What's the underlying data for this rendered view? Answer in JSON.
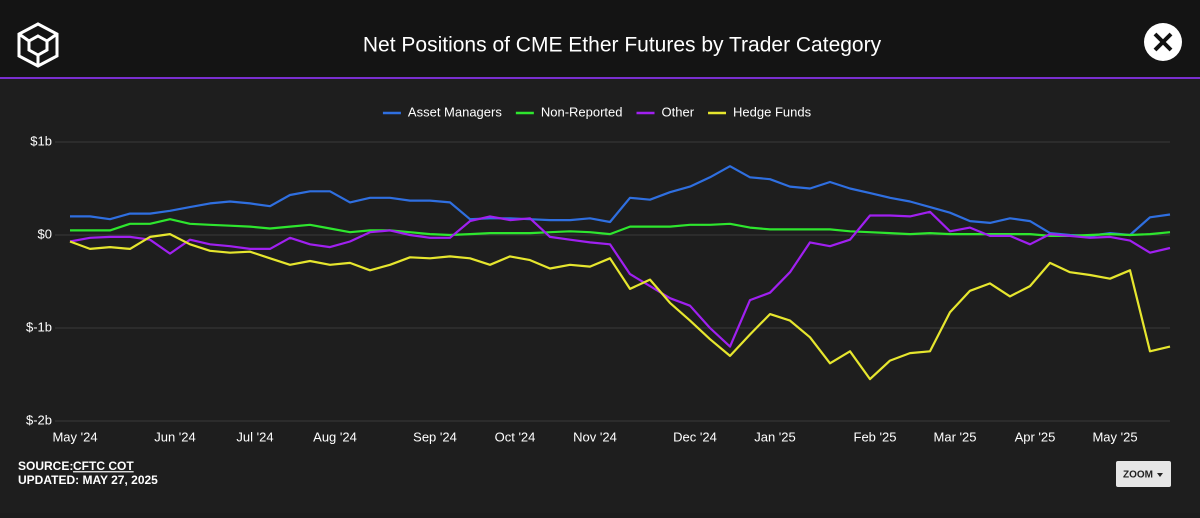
{
  "header": {
    "title": "Net Positions of CME Ether Futures by Trader Category"
  },
  "chart_data": {
    "type": "line",
    "categories": [
      "May '24",
      null,
      null,
      null,
      null,
      "Jun '24",
      null,
      null,
      null,
      "Jul '24",
      null,
      null,
      null,
      "Aug '24",
      null,
      null,
      null,
      null,
      "Sep '24",
      null,
      null,
      null,
      "Oct '24",
      null,
      null,
      null,
      "Nov '24",
      null,
      null,
      null,
      null,
      "Dec '24",
      null,
      null,
      null,
      "Jan '25",
      null,
      null,
      null,
      null,
      "Feb '25",
      null,
      null,
      null,
      "Mar '25",
      null,
      null,
      null,
      "Apr '25",
      null,
      null,
      null,
      "May '25",
      null,
      null,
      null
    ],
    "series": [
      {
        "name": "Asset Managers",
        "color": "#2f6fe0",
        "values": [
          0.2,
          0.2,
          0.17,
          0.23,
          0.23,
          0.26,
          0.3,
          0.34,
          0.36,
          0.34,
          0.31,
          0.43,
          0.47,
          0.47,
          0.35,
          0.4,
          0.4,
          0.37,
          0.37,
          0.35,
          0.17,
          0.18,
          0.18,
          0.17,
          0.16,
          0.16,
          0.18,
          0.14,
          0.4,
          0.38,
          0.46,
          0.52,
          0.62,
          0.74,
          0.62,
          0.6,
          0.52,
          0.5,
          0.57,
          0.5,
          0.45,
          0.4,
          0.36,
          0.3,
          0.24,
          0.15,
          0.13,
          0.18,
          0.15,
          0.02,
          0.0,
          -0.01,
          0.02,
          0.0,
          0.19,
          0.22
        ]
      },
      {
        "name": "Non-Reported",
        "color": "#2ee62e",
        "values": [
          0.05,
          0.05,
          0.05,
          0.12,
          0.12,
          0.17,
          0.12,
          0.11,
          0.1,
          0.09,
          0.07,
          0.09,
          0.11,
          0.07,
          0.03,
          0.05,
          0.05,
          0.03,
          0.01,
          0.0,
          0.01,
          0.02,
          0.02,
          0.02,
          0.03,
          0.04,
          0.03,
          0.01,
          0.09,
          0.09,
          0.09,
          0.11,
          0.11,
          0.12,
          0.08,
          0.06,
          0.06,
          0.06,
          0.06,
          0.04,
          0.03,
          0.02,
          0.01,
          0.02,
          0.01,
          0.01,
          0.01,
          0.01,
          0.01,
          -0.01,
          -0.01,
          0.0,
          0.01,
          0.0,
          0.01,
          0.03
        ]
      },
      {
        "name": "Other",
        "color": "#a020f0",
        "values": [
          -0.07,
          -0.03,
          -0.02,
          -0.02,
          -0.05,
          -0.2,
          -0.05,
          -0.1,
          -0.12,
          -0.15,
          -0.15,
          -0.03,
          -0.1,
          -0.13,
          -0.07,
          0.03,
          0.05,
          0.0,
          -0.03,
          -0.03,
          0.15,
          0.2,
          0.16,
          0.18,
          -0.02,
          -0.05,
          -0.08,
          -0.1,
          -0.42,
          -0.55,
          -0.68,
          -0.76,
          -1.0,
          -1.2,
          -0.7,
          -0.62,
          -0.4,
          -0.08,
          -0.12,
          -0.05,
          0.21,
          0.21,
          0.2,
          0.25,
          0.04,
          0.08,
          -0.01,
          -0.01,
          -0.1,
          0.01,
          -0.01,
          -0.03,
          -0.02,
          -0.06,
          -0.19,
          -0.14
        ]
      },
      {
        "name": "Hedge Funds",
        "color": "#e6e62e",
        "values": [
          -0.07,
          -0.15,
          -0.13,
          -0.15,
          -0.02,
          0.01,
          -0.1,
          -0.17,
          -0.19,
          -0.18,
          -0.25,
          -0.32,
          -0.28,
          -0.32,
          -0.3,
          -0.38,
          -0.32,
          -0.24,
          -0.25,
          -0.23,
          -0.25,
          -0.32,
          -0.23,
          -0.27,
          -0.36,
          -0.32,
          -0.34,
          -0.25,
          -0.58,
          -0.48,
          -0.73,
          -0.92,
          -1.12,
          -1.3,
          -1.07,
          -0.85,
          -0.92,
          -1.1,
          -1.38,
          -1.25,
          -1.55,
          -1.35,
          -1.27,
          -1.25,
          -0.83,
          -0.6,
          -0.52,
          -0.66,
          -0.55,
          -0.3,
          -0.4,
          -0.43,
          -0.47,
          -0.38,
          -1.25,
          -1.2
        ]
      }
    ],
    "ylim": [
      -2,
      1
    ],
    "yticks": [
      {
        "value": 1,
        "label": "$1b"
      },
      {
        "value": 0,
        "label": "$0"
      },
      {
        "value": -1,
        "label": "$-1b"
      },
      {
        "value": -2,
        "label": "$-2b"
      }
    ],
    "grid": true,
    "legend": "top"
  },
  "footer": {
    "source_label": "SOURCE:",
    "source": "CFTC COT",
    "updated": "UPDATED: MAY 27, 2025",
    "zoom": "ZOOM"
  }
}
